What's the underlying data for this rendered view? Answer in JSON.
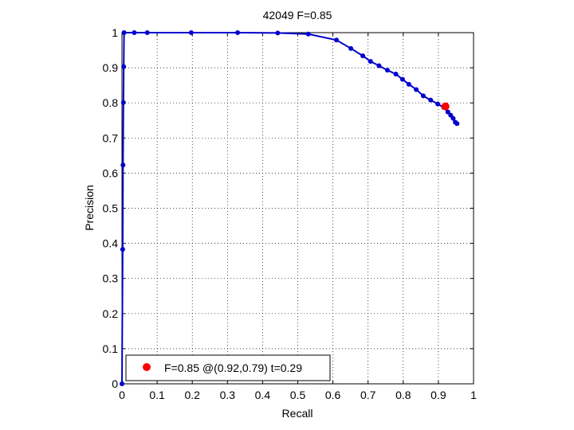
{
  "chart_data": {
    "type": "line",
    "title": "42049 F=0.85",
    "xlabel": "Recall",
    "ylabel": "Precision",
    "xlim": [
      0,
      1
    ],
    "ylim": [
      0,
      1
    ],
    "xticks": [
      "0",
      "0.1",
      "0.2",
      "0.3",
      "0.4",
      "0.5",
      "0.6",
      "0.7",
      "0.8",
      "0.9",
      "1"
    ],
    "yticks": [
      "0",
      "0.1",
      "0.2",
      "0.3",
      "0.4",
      "0.5",
      "0.6",
      "0.7",
      "0.8",
      "0.9",
      "1"
    ],
    "grid": true,
    "series_color": "#0000cc",
    "highlight_color": "#ff0000",
    "series": [
      {
        "x": [
          0.0,
          0.002,
          0.003,
          0.004,
          0.005,
          0.006,
          0.035,
          0.072,
          0.197,
          0.329,
          0.443,
          0.53,
          0.61,
          0.651,
          0.685,
          0.707,
          0.731,
          0.755,
          0.779,
          0.798,
          0.816,
          0.837,
          0.857,
          0.878,
          0.898,
          0.915,
          0.927,
          0.935,
          0.942,
          0.948,
          0.953
        ],
        "y": [
          0.0,
          0.383,
          0.623,
          0.801,
          0.903,
          1.0,
          1.0,
          1.0,
          1.0,
          1.0,
          0.999,
          0.996,
          0.979,
          0.955,
          0.934,
          0.918,
          0.906,
          0.893,
          0.882,
          0.867,
          0.853,
          0.838,
          0.82,
          0.808,
          0.797,
          0.787,
          0.774,
          0.765,
          0.756,
          0.745,
          0.741
        ]
      }
    ],
    "highlight_point": {
      "x": 0.92,
      "y": 0.79
    },
    "legend": {
      "position": "bottom-left",
      "text": "F=0.85 @(0.92,0.79) t=0.29"
    }
  }
}
